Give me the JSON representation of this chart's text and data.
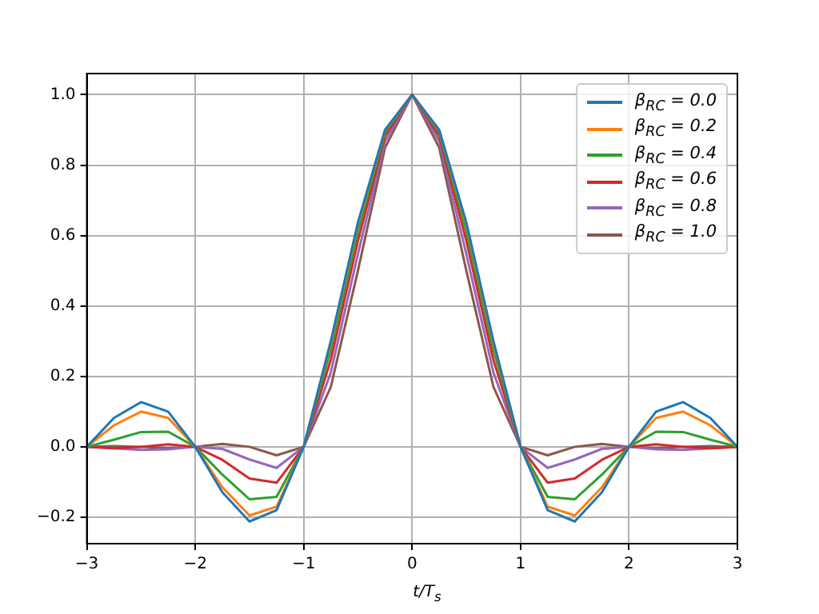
{
  "chart_data": {
    "type": "line",
    "xlabel": "t/T$_{s}$",
    "x": [
      -3,
      -2.75,
      -2.5,
      -2.25,
      -2,
      -1.75,
      -1.5,
      -1.25,
      -1,
      -0.75,
      -0.5,
      -0.25,
      0,
      0.25,
      0.5,
      0.75,
      1,
      1.25,
      1.5,
      1.75,
      2,
      2.25,
      2.5,
      2.75,
      3
    ],
    "series": [
      {
        "name": "β$_{RC}$ = 0.0",
        "color": "#1f77b4",
        "values": [
          0,
          0.082,
          0.127,
          0.1,
          0,
          -0.129,
          -0.212,
          -0.18,
          0,
          0.3,
          0.637,
          0.9,
          1,
          0.9,
          0.637,
          0.3,
          0,
          -0.18,
          -0.212,
          -0.129,
          0,
          0.1,
          0.127,
          0.082,
          0
        ]
      },
      {
        "name": "β$_{RC}$ = 0.2",
        "color": "#ff7f0e",
        "values": [
          0,
          0.061,
          0.1,
          0.082,
          0,
          -0.115,
          -0.195,
          -0.17,
          0,
          0.294,
          0.631,
          0.898,
          1,
          0.898,
          0.631,
          0.294,
          0,
          -0.17,
          -0.195,
          -0.115,
          0,
          0.082,
          0.1,
          0.061,
          0
        ]
      },
      {
        "name": "β$_{RC}$ = 0.4",
        "color": "#2ca02c",
        "values": [
          0,
          0.02,
          0.042,
          0.043,
          0,
          -0.079,
          -0.149,
          -0.142,
          0,
          0.276,
          0.613,
          0.892,
          1,
          0.892,
          0.613,
          0.276,
          0,
          -0.142,
          -0.149,
          -0.079,
          0,
          0.043,
          0.042,
          0.02,
          0
        ]
      },
      {
        "name": "β$_{RC}$ = 0.6",
        "color": "#d62728",
        "values": [
          0,
          -0.004,
          0,
          0.007,
          0,
          -0.037,
          -0.09,
          -0.102,
          0,
          0.247,
          0.585,
          0.882,
          1,
          0.882,
          0.585,
          0.247,
          0,
          -0.102,
          -0.09,
          -0.037,
          0,
          0.007,
          0,
          -0.004,
          0
        ]
      },
      {
        "name": "β$_{RC}$ = 0.8",
        "color": "#9467bd",
        "values": [
          0,
          -0.004,
          -0.009,
          -0.007,
          0,
          -0.006,
          -0.036,
          -0.06,
          0,
          0.211,
          0.547,
          0.867,
          1,
          0.867,
          0.547,
          0.211,
          0,
          -0.06,
          -0.036,
          -0.006,
          0,
          -0.007,
          -0.009,
          -0.004,
          0
        ]
      },
      {
        "name": "β$_{RC}$ = 1.0",
        "color": "#8c564b",
        "values": [
          0,
          0.002,
          0,
          -0.004,
          0,
          0.008,
          0,
          -0.024,
          0,
          0.17,
          0.5,
          0.849,
          1,
          0.849,
          0.5,
          0.17,
          0,
          -0.024,
          0,
          0.008,
          0,
          -0.004,
          0,
          0.002,
          0
        ]
      }
    ],
    "xlim": [
      -3,
      3
    ],
    "xticks": [
      {
        "value": -3,
        "label": "−3"
      },
      {
        "value": -2,
        "label": "−2"
      },
      {
        "value": -1,
        "label": "−1"
      },
      0,
      1,
      2,
      3
    ],
    "ylim": [
      -0.275,
      1.06
    ],
    "yticks": [
      {
        "value": -0.2,
        "label": "−0.2"
      },
      {
        "value": 0,
        "label": "0.0"
      },
      {
        "value": 0.2,
        "label": "0.2"
      },
      {
        "value": 0.4,
        "label": "0.4"
      },
      {
        "value": 0.6,
        "label": "0.6"
      },
      {
        "value": 0.8,
        "label": "0.8"
      },
      {
        "value": 1,
        "label": "1.0"
      }
    ],
    "grid": true,
    "legend": "top right",
    "marker": "none",
    "line_style": "solid"
  }
}
